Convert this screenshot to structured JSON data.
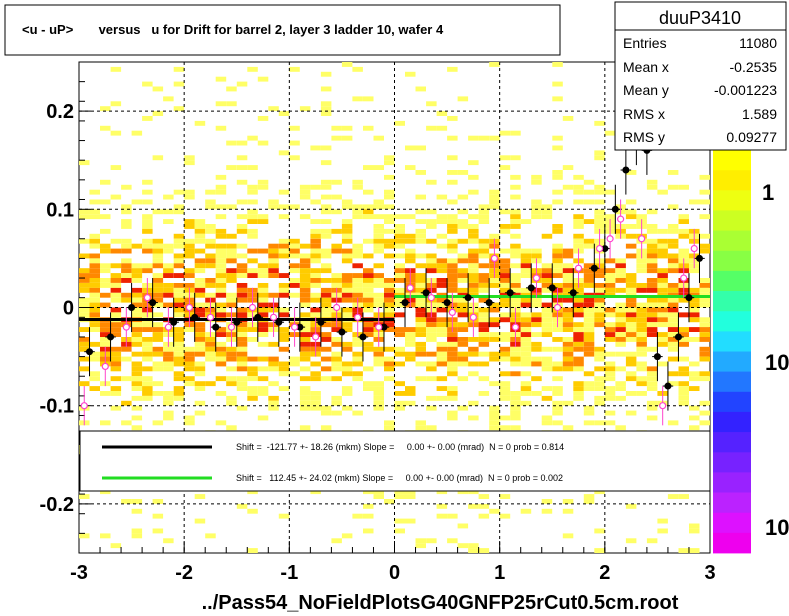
{
  "title": "<u - uP>       versus   u for Drift for barrel 2, layer 3 ladder 10, wafer 4",
  "footer": "../Pass54_NoFieldPlotsG40GNFP25rCut0.5cm.root",
  "stats": {
    "name": "duuP3410",
    "rows": [
      {
        "label": "Entries",
        "value": "11080"
      },
      {
        "label": "Mean x",
        "value": "-0.2535"
      },
      {
        "label": "Mean y",
        "value": "-0.001223"
      },
      {
        "label": "RMS x",
        "value": "1.589"
      },
      {
        "label": "RMS y",
        "value": "0.09277"
      }
    ]
  },
  "legend": [
    {
      "color": "#000000",
      "text": "Shift =  -121.77 +- 18.26 (mkm) Slope =     0.00 +- 0.00 (mrad)  N = 0 prob = 0.814"
    },
    {
      "color": "#22dd22",
      "text": "Shift =   112.45 +- 24.02 (mkm) Slope =     0.00 +- 0.00 (mrad)  N = 0 prob = 0.002"
    }
  ],
  "palette_labels": [
    "1",
    "10",
    "10"
  ],
  "colors": {
    "heat": [
      "#ffff66",
      "#ffcc00",
      "#ff8800",
      "#ee2200"
    ],
    "fit_black": "#000000",
    "fit_green": "#22dd22",
    "open_marker": "#ff44cc"
  },
  "chart_data": {
    "type": "heatmap",
    "xlabel": "",
    "ylabel": "",
    "xlim": [
      -3,
      3
    ],
    "ylim": [
      -0.25,
      0.25
    ],
    "x_ticks": [
      -3,
      -2,
      -1,
      0,
      1,
      2,
      3
    ],
    "y_ticks": [
      -0.2,
      -0.1,
      0,
      0.1,
      0.2
    ],
    "grid": true,
    "fits": [
      {
        "name": "black",
        "x_range": [
          -3,
          0
        ],
        "y": -0.0122
      },
      {
        "name": "green",
        "x_range": [
          0,
          3
        ],
        "y": 0.0112
      }
    ],
    "profile_filled": {
      "x": [
        -2.9,
        -2.7,
        -2.5,
        -2.3,
        -2.1,
        -1.9,
        -1.7,
        -1.5,
        -1.3,
        -1.1,
        -0.9,
        -0.7,
        -0.5,
        -0.3,
        -0.1,
        0.1,
        0.3,
        0.5,
        0.7,
        0.9,
        1.1,
        1.3,
        1.5,
        1.7,
        1.9,
        2.0,
        2.1,
        2.2,
        2.3,
        2.4,
        2.5,
        2.6,
        2.7,
        2.8,
        2.9
      ],
      "y": [
        -0.045,
        -0.03,
        0.0,
        0.005,
        -0.015,
        -0.01,
        -0.02,
        -0.015,
        -0.01,
        -0.015,
        -0.02,
        -0.015,
        -0.025,
        -0.03,
        -0.02,
        0.005,
        0.015,
        0.005,
        0.01,
        0.005,
        0.015,
        0.02,
        0.02,
        0.015,
        0.04,
        0.06,
        0.1,
        0.14,
        0.17,
        0.16,
        -0.05,
        -0.08,
        -0.03,
        0.01,
        0.05
      ]
    },
    "profile_open": {
      "x": [
        -2.95,
        -2.75,
        -2.55,
        -2.35,
        -2.15,
        -1.95,
        -1.75,
        -1.55,
        -1.35,
        -1.15,
        -0.95,
        -0.75,
        -0.55,
        -0.35,
        -0.15,
        0.15,
        0.35,
        0.55,
        0.75,
        0.95,
        1.15,
        1.35,
        1.55,
        1.75,
        1.95,
        2.05,
        2.15,
        2.25,
        2.35,
        2.55,
        2.75,
        2.85
      ],
      "y": [
        -0.1,
        -0.06,
        -0.02,
        0.01,
        -0.02,
        0.0,
        -0.01,
        -0.02,
        0.0,
        -0.01,
        -0.02,
        -0.03,
        0.0,
        -0.01,
        -0.02,
        0.02,
        0.01,
        -0.005,
        -0.01,
        0.05,
        -0.02,
        0.03,
        0.0,
        0.04,
        0.06,
        0.07,
        0.09,
        0.19,
        0.07,
        -0.1,
        0.03,
        0.06
      ]
    }
  }
}
